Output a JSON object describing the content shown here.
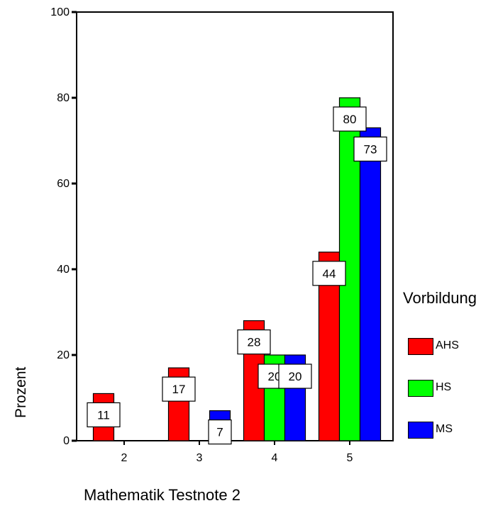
{
  "chart_data": {
    "type": "bar",
    "categories": [
      "2",
      "3",
      "4",
      "5"
    ],
    "series": [
      {
        "name": "AHS",
        "values": [
          11,
          17,
          28,
          44
        ],
        "color": "#ff0000"
      },
      {
        "name": "HS",
        "values": [
          0,
          0,
          20,
          80
        ],
        "color": "#00ff00"
      },
      {
        "name": "MS",
        "values": [
          0,
          7,
          20,
          73
        ],
        "color": "#0000ff"
      }
    ],
    "data_labels": [
      {
        "category": "2",
        "series": "AHS",
        "text": "11"
      },
      {
        "category": "3",
        "series": "AHS",
        "text": "17"
      },
      {
        "category": "3",
        "series": "MS",
        "text": "7"
      },
      {
        "category": "4",
        "series": "AHS",
        "text": "28"
      },
      {
        "category": "4",
        "series": "HS",
        "text": "20"
      },
      {
        "category": "4",
        "series": "MS",
        "text": "20"
      },
      {
        "category": "5",
        "series": "AHS",
        "text": "44"
      },
      {
        "category": "5",
        "series": "HS",
        "text": "80"
      },
      {
        "category": "5",
        "series": "MS",
        "text": "73"
      }
    ],
    "yticks": [
      "0",
      "20",
      "40",
      "60",
      "80",
      "100"
    ],
    "ylim": [
      0,
      100
    ],
    "xlabel": "Mathematik Testnote 2",
    "ylabel": "Prozent",
    "legend_title": "Vorbildung",
    "legend_position": "right",
    "grid": false
  }
}
